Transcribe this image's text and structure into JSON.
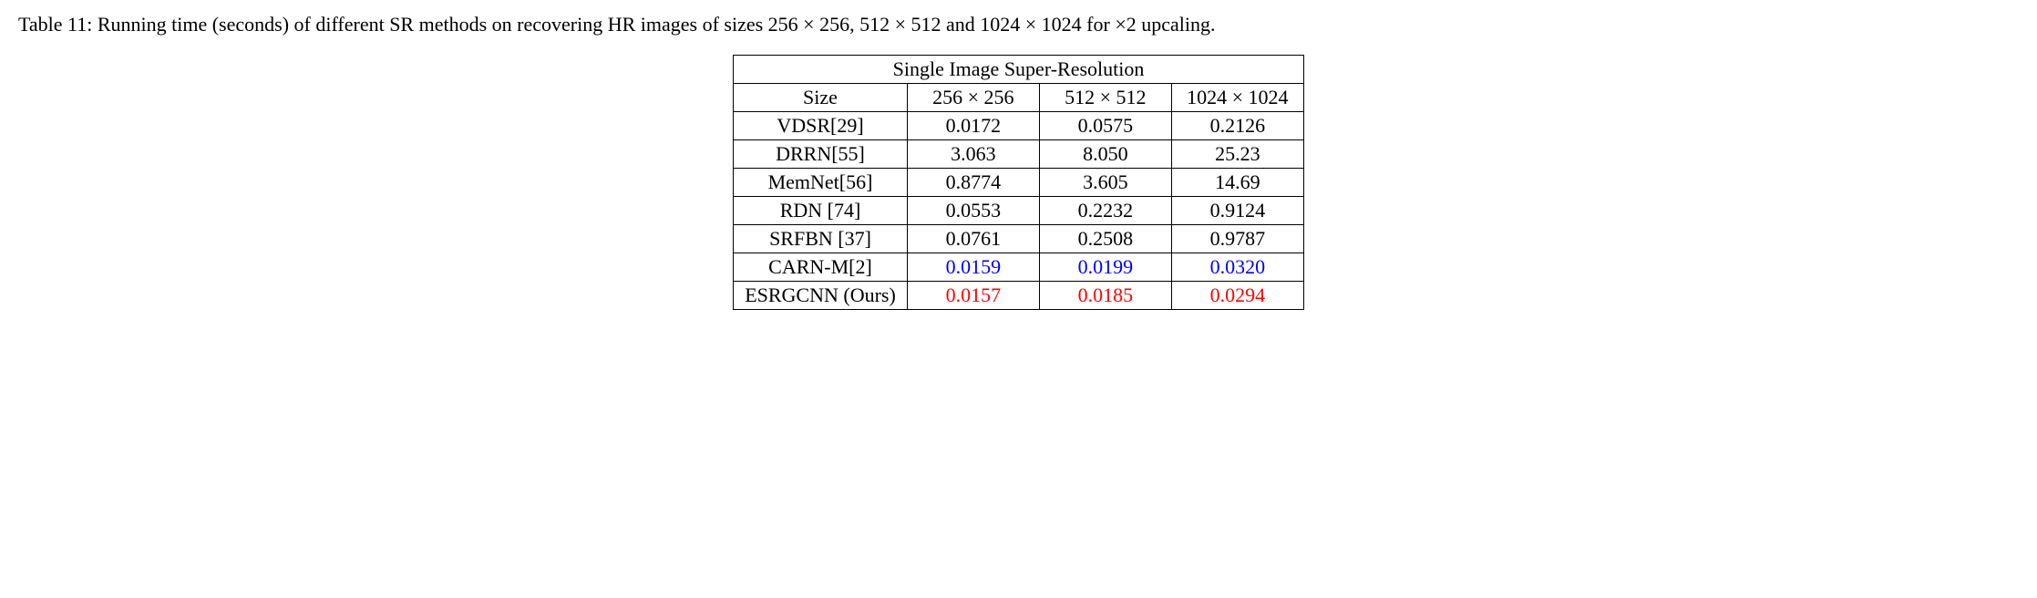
{
  "caption": "Table 11: Running time (seconds) of different SR methods on recovering HR images of sizes 256 × 256, 512 × 512 and 1024 × 1024 for ×2 upcaling.",
  "table": {
    "spanning_header": "Single Image Super-Resolution",
    "size_label": "Size",
    "sizes": [
      "256 × 256",
      "512 × 512",
      "1024 × 1024"
    ],
    "rows": [
      {
        "method": "VDSR[29]",
        "values": [
          "0.0172",
          "0.0575",
          "0.2126"
        ],
        "colors": [
          "#000000",
          "#000000",
          "#000000"
        ]
      },
      {
        "method": "DRRN[55]",
        "values": [
          "3.063",
          "8.050",
          "25.23"
        ],
        "colors": [
          "#000000",
          "#000000",
          "#000000"
        ]
      },
      {
        "method": "MemNet[56]",
        "values": [
          "0.8774",
          "3.605",
          "14.69"
        ],
        "colors": [
          "#000000",
          "#000000",
          "#000000"
        ]
      },
      {
        "method": "RDN [74]",
        "values": [
          "0.0553",
          "0.2232",
          "0.9124"
        ],
        "colors": [
          "#000000",
          "#000000",
          "#000000"
        ]
      },
      {
        "method": "SRFBN [37]",
        "values": [
          "0.0761",
          "0.2508",
          "0.9787"
        ],
        "colors": [
          "#000000",
          "#000000",
          "#000000"
        ]
      },
      {
        "method": "CARN-M[2]",
        "values": [
          "0.0159",
          "0.0199",
          "0.0320"
        ],
        "colors": [
          "#0000ff",
          "#0000ff",
          "#0000ff"
        ]
      },
      {
        "method": "ESRGCNN (Ours)",
        "values": [
          "0.0157",
          "0.0185",
          "0.0294"
        ],
        "colors": [
          "#ff0000",
          "#ff0000",
          "#ff0000"
        ]
      }
    ],
    "border_color": "#000000",
    "font_family": "Times New Roman",
    "font_size_pt": 16
  }
}
